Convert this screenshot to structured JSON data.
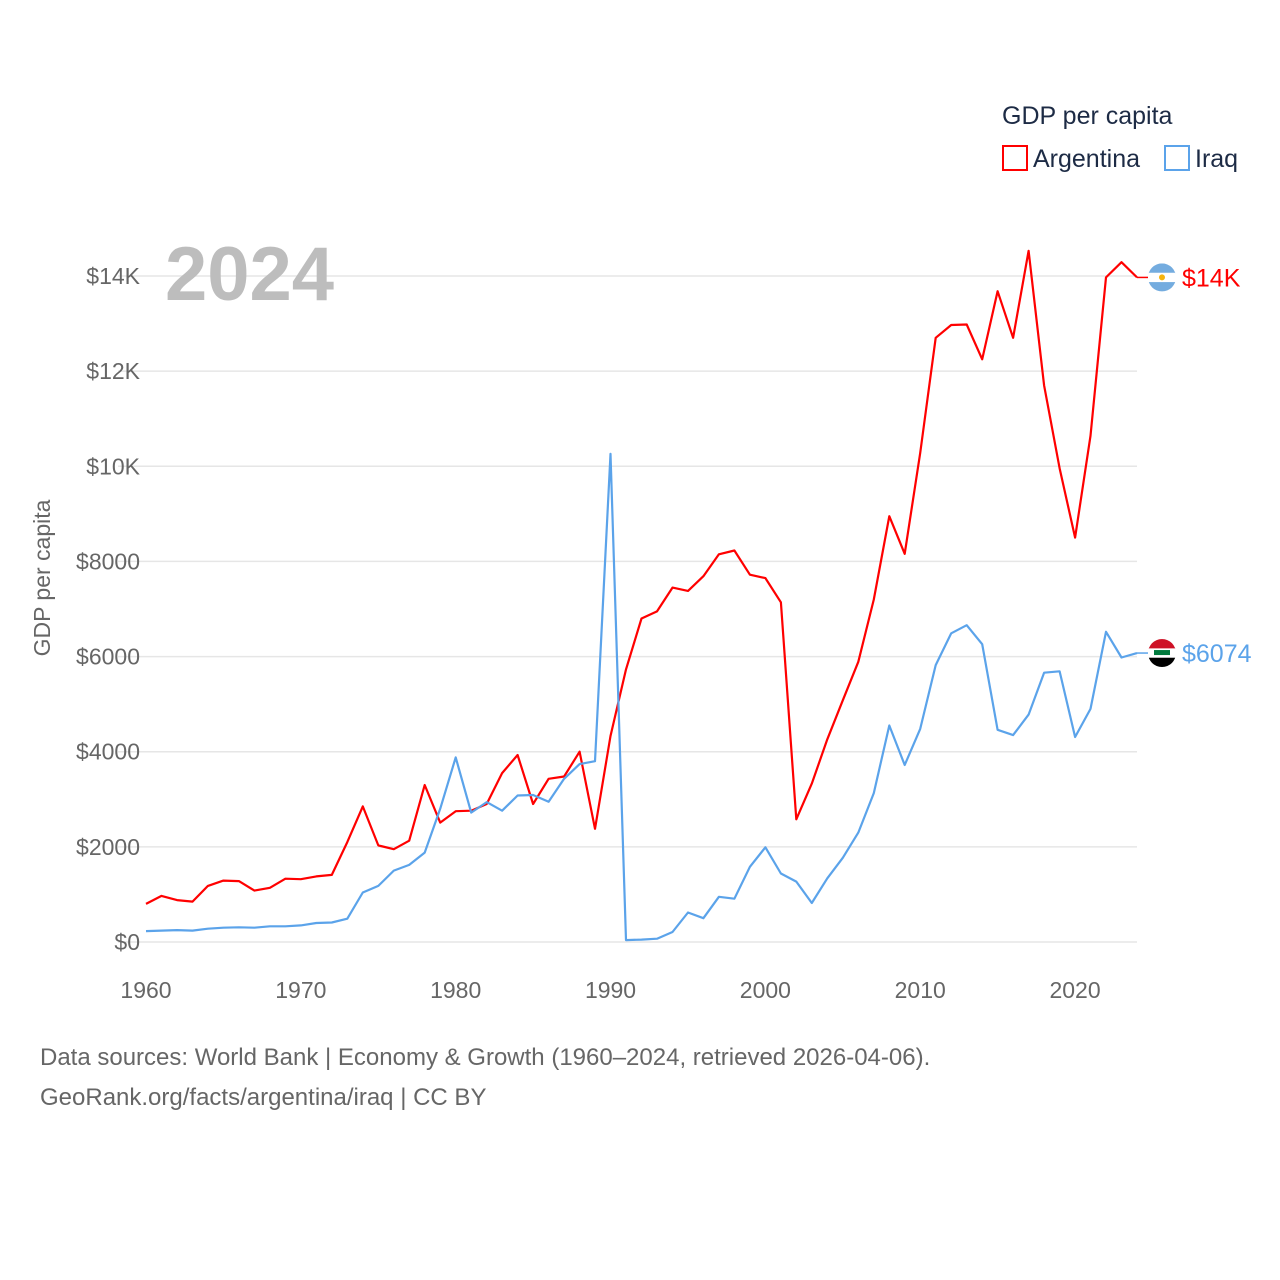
{
  "chart_data": {
    "type": "line",
    "title": "2024",
    "legend_title": "GDP per capita",
    "legend_placement": "top-right",
    "xlabel": "",
    "ylabel": "GDP per capita",
    "xlim": [
      1960,
      2024
    ],
    "ylim": [
      0,
      14000
    ],
    "x_ticks": [
      1960,
      1970,
      1980,
      1990,
      2000,
      2010,
      2020
    ],
    "x_tick_labels": [
      "1960",
      "1970",
      "1980",
      "1990",
      "2000",
      "2010",
      "2020"
    ],
    "y_ticks": [
      0,
      2000,
      4000,
      6000,
      8000,
      10000,
      12000,
      14000
    ],
    "y_tick_labels": [
      "$0",
      "$2000",
      "$4000",
      "$6000",
      "$8000",
      "$10K",
      "$12K",
      "$14K"
    ],
    "grid": true,
    "x": [
      1960,
      1961,
      1962,
      1963,
      1964,
      1965,
      1966,
      1967,
      1968,
      1969,
      1970,
      1971,
      1972,
      1973,
      1974,
      1975,
      1976,
      1977,
      1978,
      1979,
      1980,
      1981,
      1982,
      1983,
      1984,
      1985,
      1986,
      1987,
      1988,
      1989,
      1990,
      1991,
      1992,
      1993,
      1994,
      1995,
      1996,
      1997,
      1998,
      1999,
      2000,
      2001,
      2002,
      2003,
      2004,
      2005,
      2006,
      2007,
      2008,
      2009,
      2010,
      2011,
      2012,
      2013,
      2014,
      2015,
      2016,
      2017,
      2018,
      2019,
      2020,
      2021,
      2022,
      2023,
      2024
    ],
    "series": [
      {
        "name": "Argentina",
        "color": "#ff0000",
        "end_label": "$14K",
        "values": [
          800,
          970,
          880,
          850,
          1180,
          1290,
          1280,
          1080,
          1140,
          1330,
          1320,
          1380,
          1410,
          2100,
          2850,
          2030,
          1950,
          2130,
          3300,
          2510,
          2750,
          2760,
          2900,
          3550,
          3930,
          2900,
          3430,
          3480,
          4000,
          2380,
          4330,
          5730,
          6800,
          6950,
          7450,
          7380,
          7690,
          8150,
          8230,
          7720,
          7650,
          7140,
          2580,
          3330,
          4260,
          5080,
          5890,
          7200,
          8950,
          8160,
          10280,
          12700,
          12970,
          12980,
          12250,
          13680,
          12700,
          14530,
          11700,
          9960,
          8500,
          10640,
          13970,
          14290,
          13970
        ]
      },
      {
        "name": "Iraq",
        "color": "#5ba3ea",
        "end_label": "$6074",
        "values": [
          230,
          240,
          250,
          240,
          280,
          300,
          310,
          300,
          330,
          330,
          350,
          400,
          410,
          490,
          1040,
          1180,
          1500,
          1620,
          1880,
          2800,
          3880,
          2720,
          2940,
          2760,
          3080,
          3090,
          2950,
          3430,
          3740,
          3800,
          10260,
          40,
          50,
          70,
          210,
          620,
          500,
          950,
          910,
          1580,
          1990,
          1440,
          1270,
          820,
          1340,
          1770,
          2300,
          3130,
          4550,
          3720,
          4480,
          5820,
          6490,
          6660,
          6260,
          4460,
          4350,
          4780,
          5660,
          5690,
          4310,
          4900,
          6520,
          5980,
          6074
        ]
      }
    ]
  },
  "footer": {
    "sources": "Data sources: World Bank | Economy & Growth (1960–2024, retrieved 2026-04-06).",
    "credit": "GeoRank.org/facts/argentina/iraq | CC BY"
  }
}
